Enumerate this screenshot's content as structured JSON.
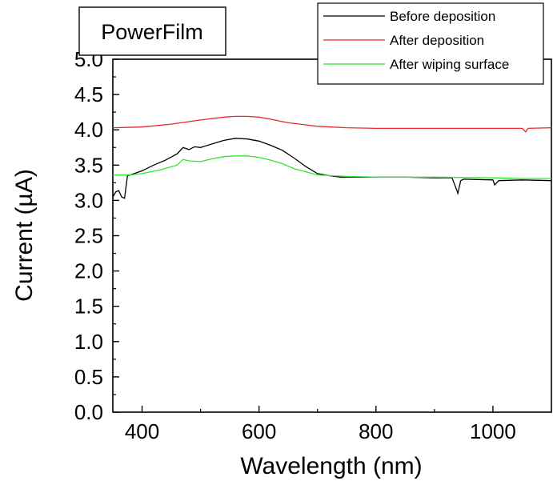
{
  "chart_data": {
    "type": "line",
    "title": "PowerFilm",
    "xlabel": "Wavelength (nm)",
    "ylabel": "Current (µA)",
    "xlim": [
      350,
      1100
    ],
    "ylim": [
      0,
      5.0
    ],
    "xticks": [
      400,
      600,
      800,
      1000
    ],
    "xtick_labels": [
      "400",
      "600",
      "800",
      "1000"
    ],
    "yticks": [
      0.0,
      0.5,
      1.0,
      1.5,
      2.0,
      2.5,
      3.0,
      3.5,
      4.0,
      4.5,
      5.0
    ],
    "ytick_labels": [
      "0.0",
      "0.5",
      "1.0",
      "1.5",
      "2.0",
      "2.5",
      "3.0",
      "3.5",
      "4.0",
      "4.5",
      "5.0"
    ],
    "grid": false,
    "legend_position": "top-right",
    "series": [
      {
        "name": "Before deposition",
        "color": "#000000",
        "x": [
          350,
          355,
          360,
          365,
          370,
          375,
          380,
          400,
          420,
          440,
          460,
          470,
          480,
          490,
          500,
          520,
          540,
          560,
          580,
          600,
          620,
          640,
          660,
          680,
          700,
          720,
          740,
          760,
          800,
          850,
          900,
          930,
          938,
          940,
          945,
          950,
          1000,
          1003,
          1010,
          1050,
          1100
        ],
        "y": [
          3.05,
          3.12,
          3.14,
          3.05,
          3.03,
          3.35,
          3.36,
          3.42,
          3.5,
          3.57,
          3.66,
          3.75,
          3.72,
          3.76,
          3.75,
          3.8,
          3.85,
          3.88,
          3.87,
          3.84,
          3.78,
          3.71,
          3.6,
          3.48,
          3.38,
          3.35,
          3.33,
          3.33,
          3.33,
          3.33,
          3.32,
          3.32,
          3.15,
          3.1,
          3.28,
          3.3,
          3.29,
          3.22,
          3.28,
          3.29,
          3.28
        ]
      },
      {
        "name": "After deposition",
        "color": "#e8262b",
        "x": [
          350,
          400,
          450,
          500,
          540,
          560,
          580,
          600,
          620,
          650,
          700,
          750,
          800,
          900,
          1000,
          1050,
          1056,
          1060,
          1100
        ],
        "y": [
          4.03,
          4.04,
          4.08,
          4.14,
          4.18,
          4.19,
          4.19,
          4.18,
          4.15,
          4.1,
          4.05,
          4.03,
          4.02,
          4.02,
          4.02,
          4.02,
          3.97,
          4.02,
          4.03
        ]
      },
      {
        "name": "After wiping surface",
        "color": "#2ee82e",
        "x": [
          350,
          380,
          400,
          430,
          460,
          470,
          480,
          500,
          520,
          540,
          560,
          580,
          600,
          620,
          640,
          660,
          700,
          750,
          800,
          900,
          1000,
          1050,
          1100
        ],
        "y": [
          3.36,
          3.36,
          3.38,
          3.43,
          3.5,
          3.58,
          3.56,
          3.55,
          3.59,
          3.62,
          3.63,
          3.63,
          3.61,
          3.57,
          3.52,
          3.45,
          3.36,
          3.34,
          3.33,
          3.33,
          3.32,
          3.31,
          3.31
        ]
      }
    ]
  }
}
